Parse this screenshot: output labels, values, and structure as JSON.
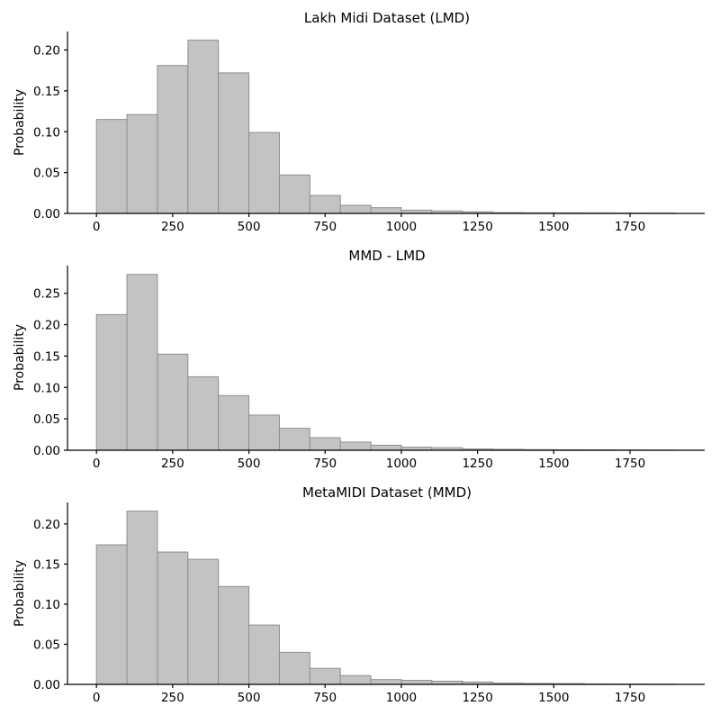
{
  "figure": {
    "background": "#ffffff",
    "bar_fill": "#c3c3c3",
    "bar_edge": "#8f8f8f",
    "axis_color": "#000000",
    "text_color": "#000000"
  },
  "chart_data": [
    {
      "type": "bar",
      "title": "Lakh Midi Dataset (LMD)",
      "ylabel": "Probability",
      "xlabel": "",
      "bins": {
        "start": 0,
        "width": 100
      },
      "values": [
        0.115,
        0.121,
        0.181,
        0.212,
        0.172,
        0.099,
        0.047,
        0.022,
        0.01,
        0.007,
        0.004,
        0.003,
        0.002,
        0.001,
        0.0008,
        0.0007,
        0.0006,
        0.0005,
        0.0004
      ],
      "xlim": [
        -95,
        1995
      ],
      "ylim": [
        0,
        0.2226
      ],
      "x_tick_values": [
        0,
        250,
        500,
        750,
        1000,
        1250,
        1500,
        1750
      ],
      "x_tick_labels": [
        "0",
        "250",
        "500",
        "750",
        "1000",
        "1250",
        "1500",
        "1750"
      ],
      "y_tick_values": [
        0.0,
        0.05,
        0.1,
        0.15,
        0.2
      ],
      "y_tick_labels": [
        "0.00",
        "0.05",
        "0.10",
        "0.15",
        "0.20"
      ],
      "grid": false,
      "legend": null
    },
    {
      "type": "bar",
      "title": "MMD - LMD",
      "ylabel": "Probability",
      "xlabel": "",
      "bins": {
        "start": 0,
        "width": 100
      },
      "values": [
        0.216,
        0.28,
        0.153,
        0.117,
        0.087,
        0.056,
        0.035,
        0.02,
        0.013,
        0.008,
        0.005,
        0.004,
        0.002,
        0.0015,
        0.001,
        0.0008,
        0.0007,
        0.0005,
        0.0004
      ],
      "xlim": [
        -95,
        1995
      ],
      "ylim": [
        0,
        0.294
      ],
      "x_tick_values": [
        0,
        250,
        500,
        750,
        1000,
        1250,
        1500,
        1750
      ],
      "x_tick_labels": [
        "0",
        "250",
        "500",
        "750",
        "1000",
        "1250",
        "1500",
        "1750"
      ],
      "y_tick_values": [
        0.0,
        0.05,
        0.1,
        0.15,
        0.2,
        0.25
      ],
      "y_tick_labels": [
        "0.00",
        "0.05",
        "0.10",
        "0.15",
        "0.20",
        "0.25"
      ],
      "grid": false,
      "legend": null
    },
    {
      "type": "bar",
      "title": "MetaMIDI Dataset (MMD)",
      "ylabel": "Probability",
      "xlabel": "",
      "bins": {
        "start": 0,
        "width": 100
      },
      "values": [
        0.174,
        0.216,
        0.165,
        0.156,
        0.122,
        0.074,
        0.04,
        0.02,
        0.011,
        0.006,
        0.005,
        0.004,
        0.003,
        0.0015,
        0.0012,
        0.001,
        0.0005,
        0.0004,
        0.0003
      ],
      "xlim": [
        -95,
        1995
      ],
      "ylim": [
        0,
        0.2268
      ],
      "x_tick_values": [
        0,
        250,
        500,
        750,
        1000,
        1250,
        1500,
        1750
      ],
      "x_tick_labels": [
        "0",
        "250",
        "500",
        "750",
        "1000",
        "1250",
        "1500",
        "1750"
      ],
      "y_tick_values": [
        0.0,
        0.05,
        0.1,
        0.15,
        0.2
      ],
      "y_tick_labels": [
        "0.00",
        "0.05",
        "0.10",
        "0.15",
        "0.20"
      ],
      "grid": false,
      "legend": null
    }
  ]
}
